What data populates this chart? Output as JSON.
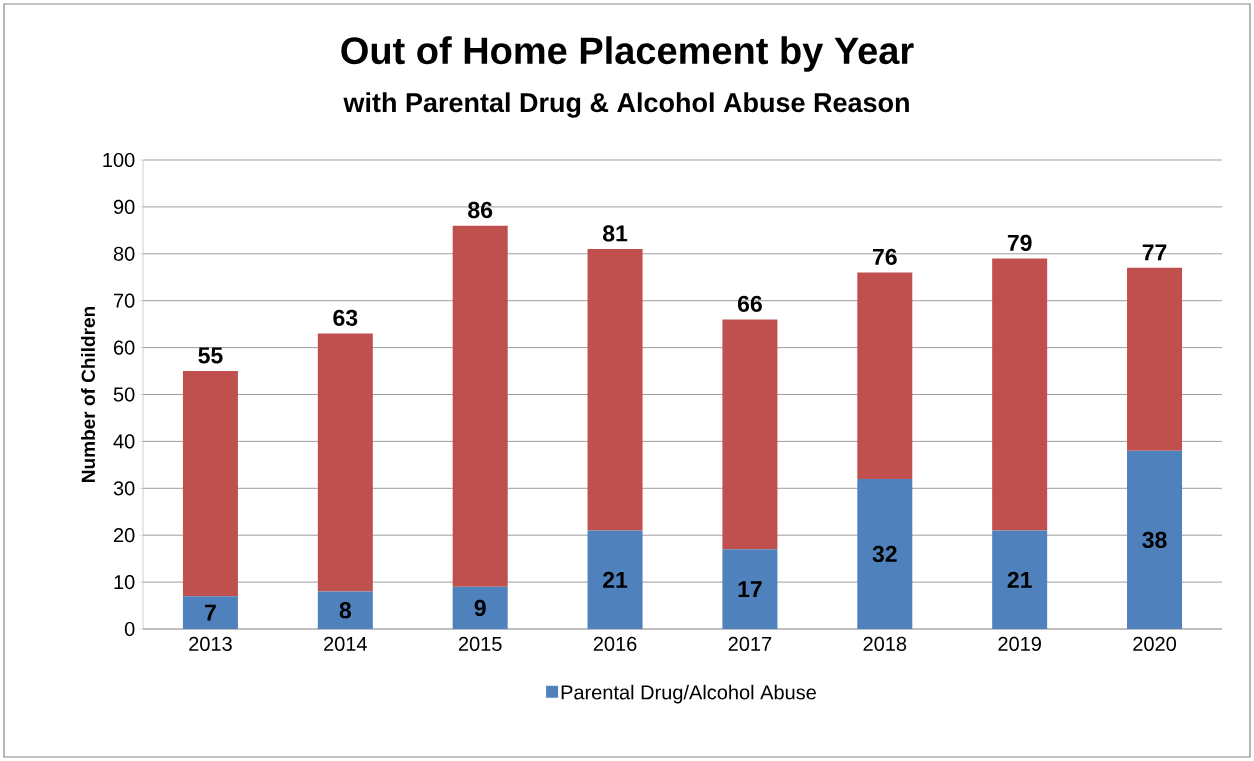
{
  "chart_data": {
    "type": "bar",
    "title": "Out of Home Placement by Year",
    "subtitle": "with Parental Drug & Alcohol Abuse Reason",
    "ylabel": "Number of Children",
    "categories": [
      "2013",
      "2014",
      "2015",
      "2016",
      "2017",
      "2018",
      "2019",
      "2020"
    ],
    "series": [
      {
        "name": "Parental Drug/Alcohol Abuse",
        "color": "#4f81bd",
        "values": [
          7,
          8,
          9,
          21,
          17,
          32,
          21,
          38
        ],
        "value_labels": [
          "7",
          "8",
          "9",
          "21",
          "17",
          "32",
          "21",
          "38"
        ]
      },
      {
        "color": "#c0504d",
        "values": [
          48,
          55,
          77,
          60,
          49,
          44,
          58,
          39
        ]
      }
    ],
    "stacked": true,
    "totals": [
      "55",
      "63",
      "86",
      "81",
      "66",
      "76",
      "79",
      "77"
    ],
    "ylim": [
      0,
      100
    ],
    "yticks": [
      0,
      10,
      20,
      30,
      40,
      50,
      60,
      70,
      80,
      90,
      100
    ],
    "grid": "y",
    "legend": "bottom"
  }
}
